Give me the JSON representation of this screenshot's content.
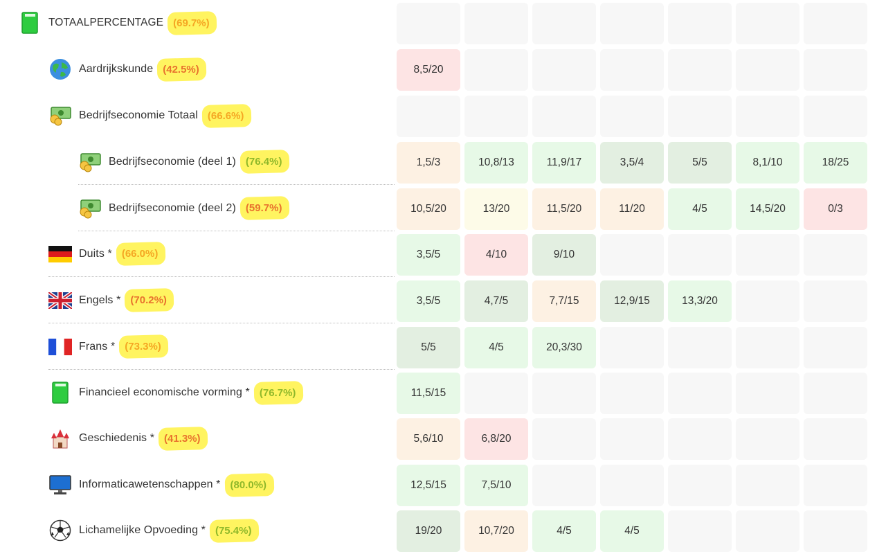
{
  "total": {
    "label": "TOTAALPERCENTAGE",
    "percent": "(69.7%)"
  },
  "subjects": [
    {
      "name": "Aardrijkskunde",
      "percent": "(42.5%)",
      "icon": "globe-icon",
      "grades": [
        "8,5/20"
      ]
    },
    {
      "name": "Bedrijfseconomie Totaal",
      "percent": "(66.6%)",
      "icon": "money-icon",
      "grades": []
    },
    {
      "name": "Bedrijfseconomie (deel 1)",
      "percent": "(76.4%)",
      "icon": "money-icon",
      "grades": [
        "1,5/3",
        "10,8/13",
        "11,9/17",
        "3,5/4",
        "5/5",
        "8,1/10",
        "18/25"
      ]
    },
    {
      "name": "Bedrijfseconomie (deel 2)",
      "percent": "(59.7%)",
      "icon": "money-icon",
      "grades": [
        "10,5/20",
        "13/20",
        "11,5/20",
        "11/20",
        "4/5",
        "14,5/20",
        "0/3"
      ]
    },
    {
      "name": "Duits *",
      "percent": "(66.0%)",
      "icon": "german-flag-icon",
      "grades": [
        "3,5/5",
        "4/10",
        "9/10"
      ]
    },
    {
      "name": "Engels *",
      "percent": "(70.2%)",
      "icon": "uk-flag-icon",
      "grades": [
        "3,5/5",
        "4,7/5",
        "7,7/15",
        "12,9/15",
        "13,3/20"
      ]
    },
    {
      "name": "Frans *",
      "percent": "(73.3%)",
      "icon": "french-flag-icon",
      "grades": [
        "5/5",
        "4/5",
        "20,3/30"
      ]
    },
    {
      "name": "Financieel economische vorming *",
      "percent": "(76.7%)",
      "icon": "green-book-icon",
      "grades": [
        "11,5/15"
      ]
    },
    {
      "name": "Geschiedenis *",
      "percent": "(41.3%)",
      "icon": "castle-icon",
      "grades": [
        "5,6/10",
        "6,8/20"
      ]
    },
    {
      "name": "Informaticawetenschappen *",
      "percent": "(80.0%)",
      "icon": "computer-icon",
      "grades": [
        "12,5/15",
        "7,5/10"
      ]
    },
    {
      "name": "Lichamelijke Opvoeding *",
      "percent": "(75.4%)",
      "icon": "soccer-ball-icon",
      "grades": [
        "19/20",
        "10,7/20",
        "4/5",
        "4/5"
      ]
    }
  ],
  "colors": {
    "red": "#fde4e4",
    "orange": "#fdf1e3",
    "yellow": "#fdfbe8",
    "green": "#e7f9e7",
    "dark_green": "#e3efe1",
    "empty": "#f7f7f7",
    "highlight": "#fff34f"
  }
}
